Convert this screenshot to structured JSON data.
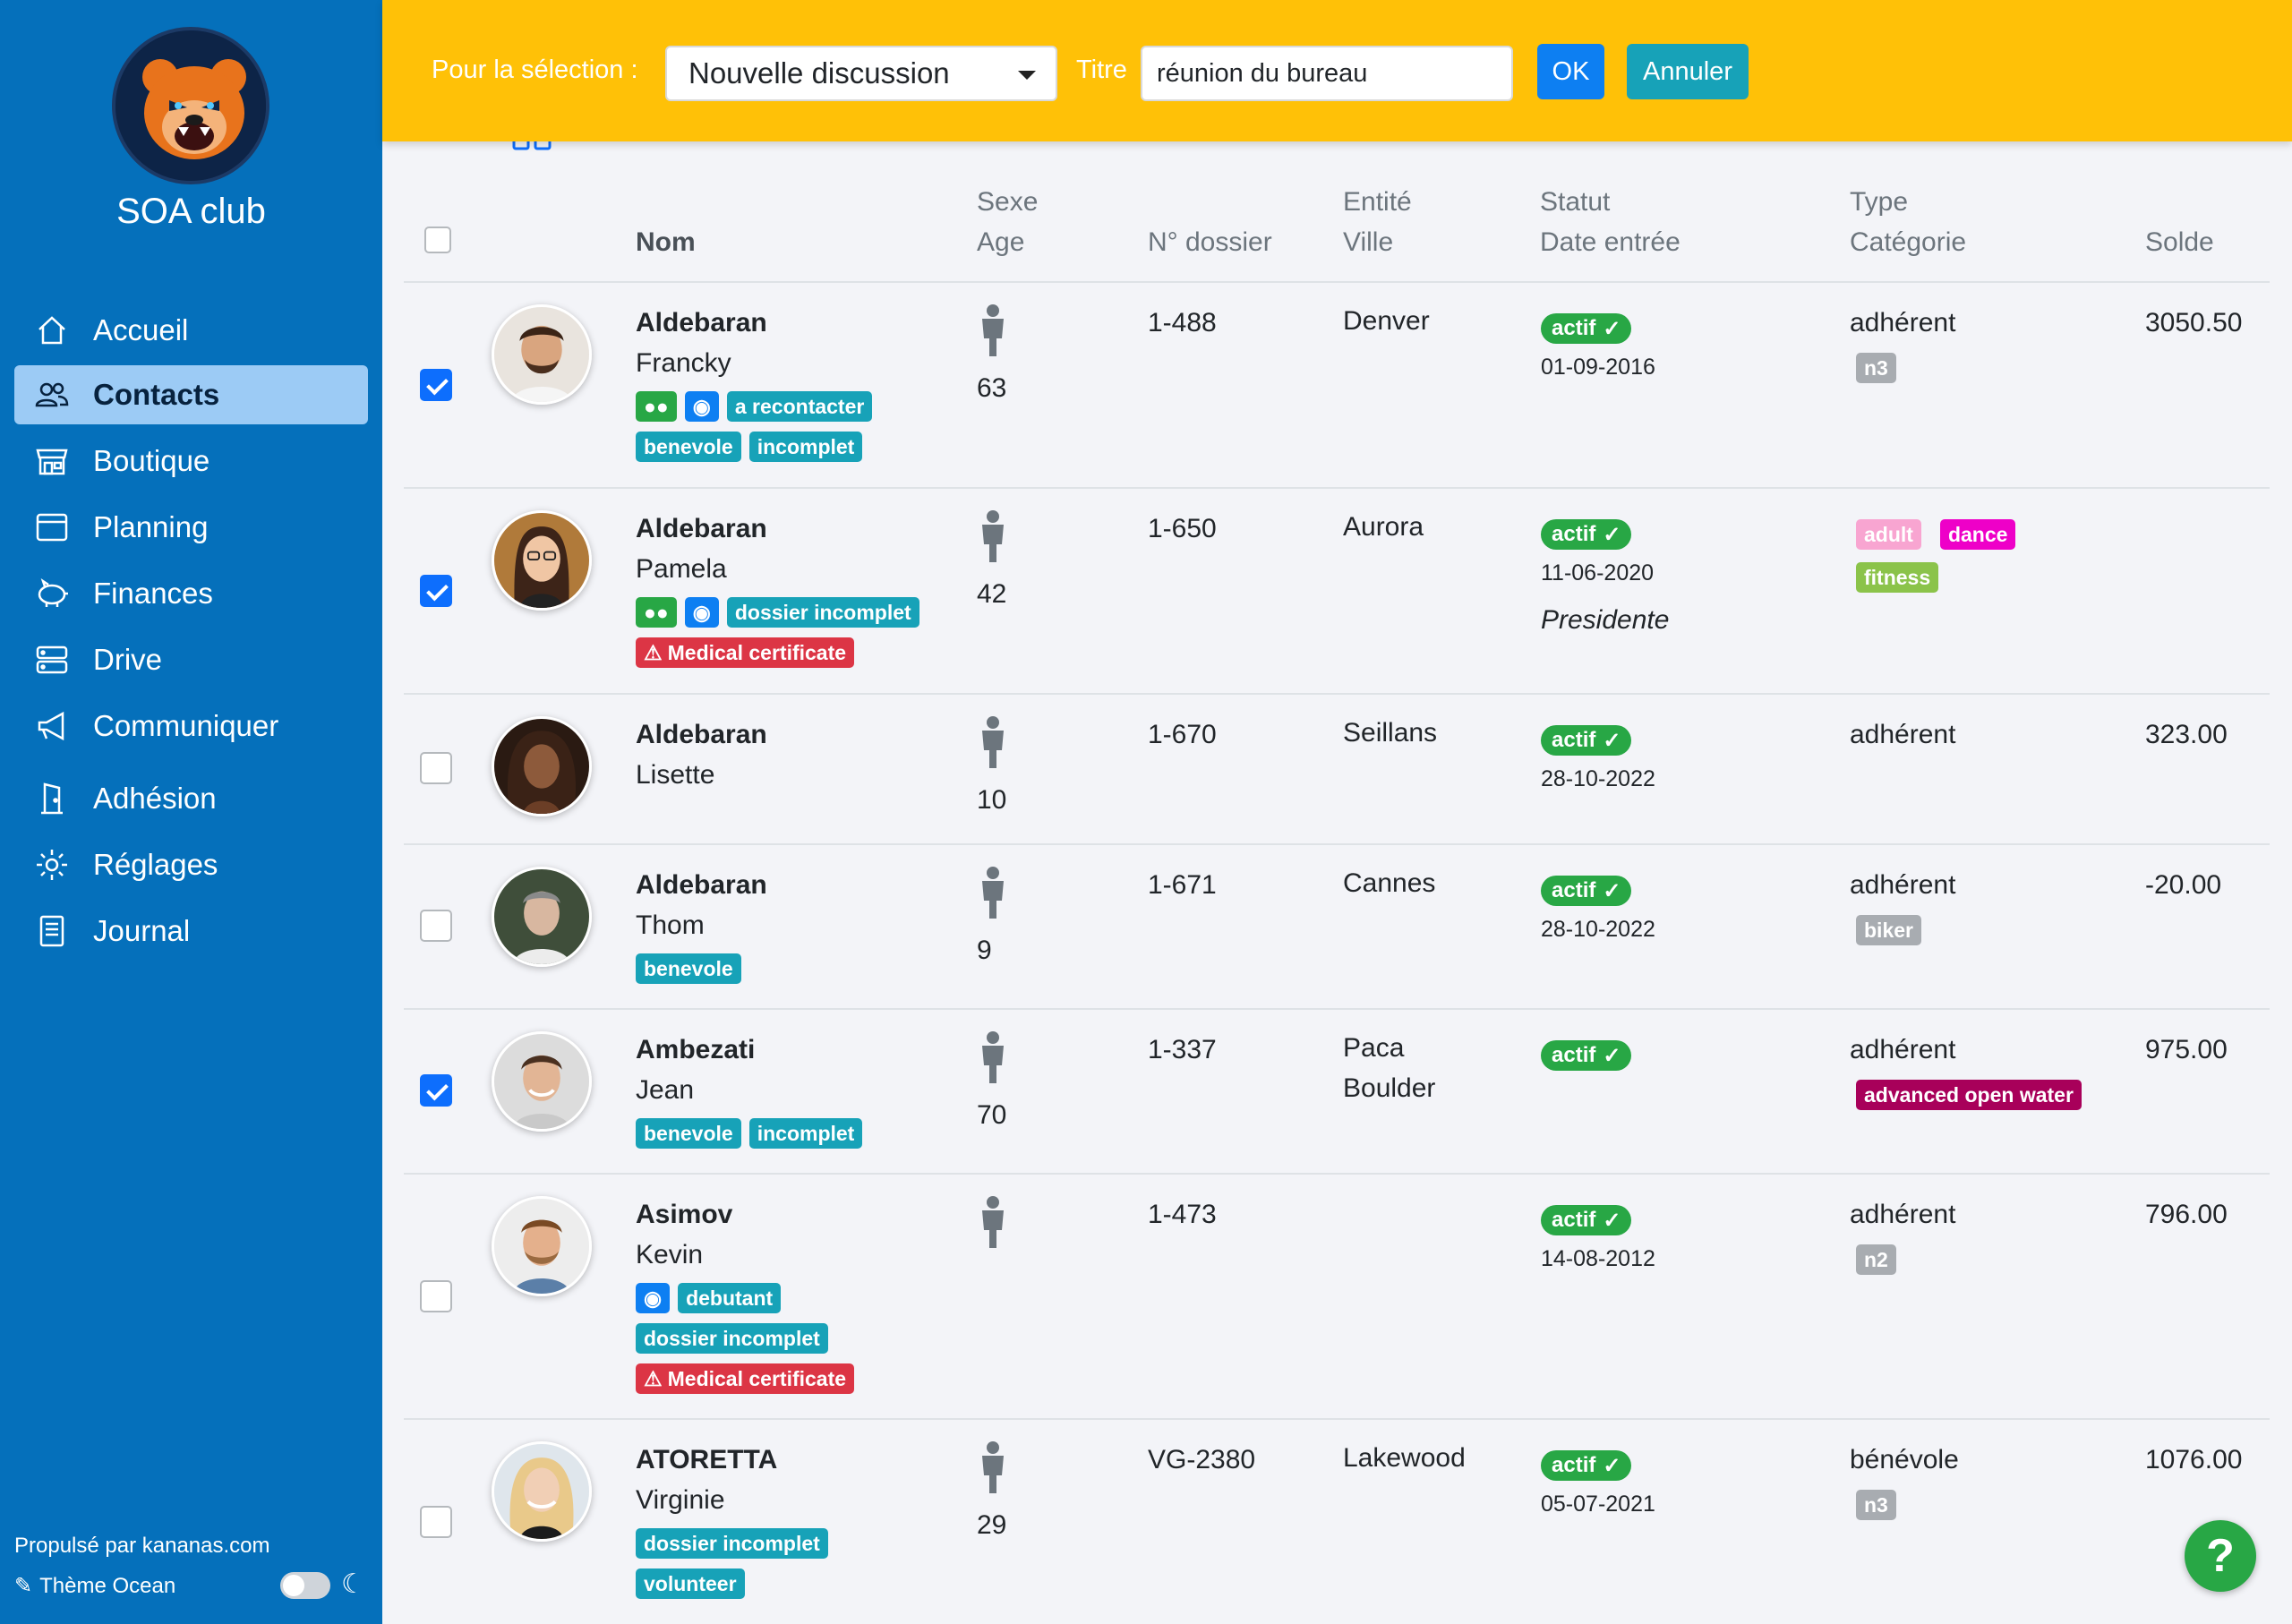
{
  "sidebar": {
    "club_name": "SOA club",
    "items": [
      {
        "label": "Accueil",
        "icon": "home-icon"
      },
      {
        "label": "Contacts",
        "icon": "users-icon",
        "active": true
      },
      {
        "label": "Boutique",
        "icon": "shop-icon"
      },
      {
        "label": "Planning",
        "icon": "calendar-icon"
      },
      {
        "label": "Finances",
        "icon": "piggy-bank-icon"
      },
      {
        "label": "Drive",
        "icon": "server-icon"
      },
      {
        "label": "Communiquer",
        "icon": "megaphone-icon"
      },
      {
        "label": "Adhésion",
        "icon": "door-icon"
      },
      {
        "label": "Réglages",
        "icon": "gear-icon"
      },
      {
        "label": "Journal",
        "icon": "journal-icon"
      }
    ],
    "powered_by": "Propulsé par kananas.com",
    "theme_label": "Thème Ocean"
  },
  "topbar": {
    "selection_label": "Pour la sélection :",
    "selection_value": "Nouvelle discussion",
    "title_label": "Titre",
    "title_value": "réunion du bureau",
    "ok_label": "OK",
    "cancel_label": "Annuler"
  },
  "table": {
    "headers": {
      "nom": "Nom",
      "sexe": "Sexe",
      "age": "Age",
      "dossier": "N° dossier",
      "entite": "Entité",
      "ville": "Ville",
      "statut": "Statut",
      "date_entree": "Date entrée",
      "type": "Type",
      "categorie": "Catégorie",
      "solde": "Solde"
    },
    "rows": [
      {
        "last": "Aldebaran",
        "first": "Francky",
        "checked": true,
        "age": "63",
        "dossier": "1-488",
        "ville": "Denver",
        "statut": "actif",
        "date": "01-09-2016",
        "type": "adhérent",
        "solde": "3050.50"
      },
      {
        "last": "Aldebaran",
        "first": "Pamela",
        "checked": true,
        "age": "42",
        "dossier": "1-650",
        "ville": "Aurora",
        "statut": "actif",
        "date": "11-06-2020",
        "role": "Presidente",
        "type": "",
        "solde": ""
      },
      {
        "last": "Aldebaran",
        "first": "Lisette",
        "checked": false,
        "age": "10",
        "dossier": "1-670",
        "ville": "Seillans",
        "statut": "actif",
        "date": "28-10-2022",
        "type": "adhérent",
        "solde": "323.00"
      },
      {
        "last": "Aldebaran",
        "first": "Thom",
        "checked": false,
        "age": "9",
        "dossier": "1-671",
        "ville": "Cannes",
        "statut": "actif",
        "date": "28-10-2022",
        "type": "adhérent",
        "solde": "-20.00"
      },
      {
        "last": "Ambezati",
        "first": "Jean",
        "checked": true,
        "age": "70",
        "dossier": "1-337",
        "entite": "Paca",
        "ville": "Boulder",
        "statut": "actif",
        "date": "",
        "type": "adhérent",
        "solde": "975.00"
      },
      {
        "last": "Asimov",
        "first": "Kevin",
        "checked": false,
        "age": "",
        "dossier": "1-473",
        "ville": "",
        "statut": "actif",
        "date": "14-08-2012",
        "type": "adhérent",
        "solde": "796.00"
      },
      {
        "last": "ATORETTA",
        "first": "Virginie",
        "checked": false,
        "age": "29",
        "dossier": "VG-2380",
        "ville": "Lakewood",
        "statut": "actif",
        "date": "05-07-2021",
        "type": "bénévole",
        "solde": "1076.00"
      }
    ],
    "tags": {
      "a_recontacter": "a recontacter",
      "benevole": "benevole",
      "incomplet": "incomplet",
      "dossier_incomplet": "dossier incomplet",
      "medical_certificate": "Medical certificate",
      "debutant": "debutant",
      "volunteer": "volunteer"
    },
    "categories": {
      "n3": "n3",
      "adult": "adult",
      "dance": "dance",
      "fitness": "fitness",
      "biker": "biker",
      "advanced_open_water": "advanced open water",
      "n2": "n2"
    }
  },
  "help": {
    "label": "?"
  },
  "colors": {
    "sidebar": "#0570bb",
    "topbar": "#ffc107",
    "status_active": "#28a745",
    "tag_teal": "#17a2b8",
    "tag_red": "#dc3545"
  }
}
